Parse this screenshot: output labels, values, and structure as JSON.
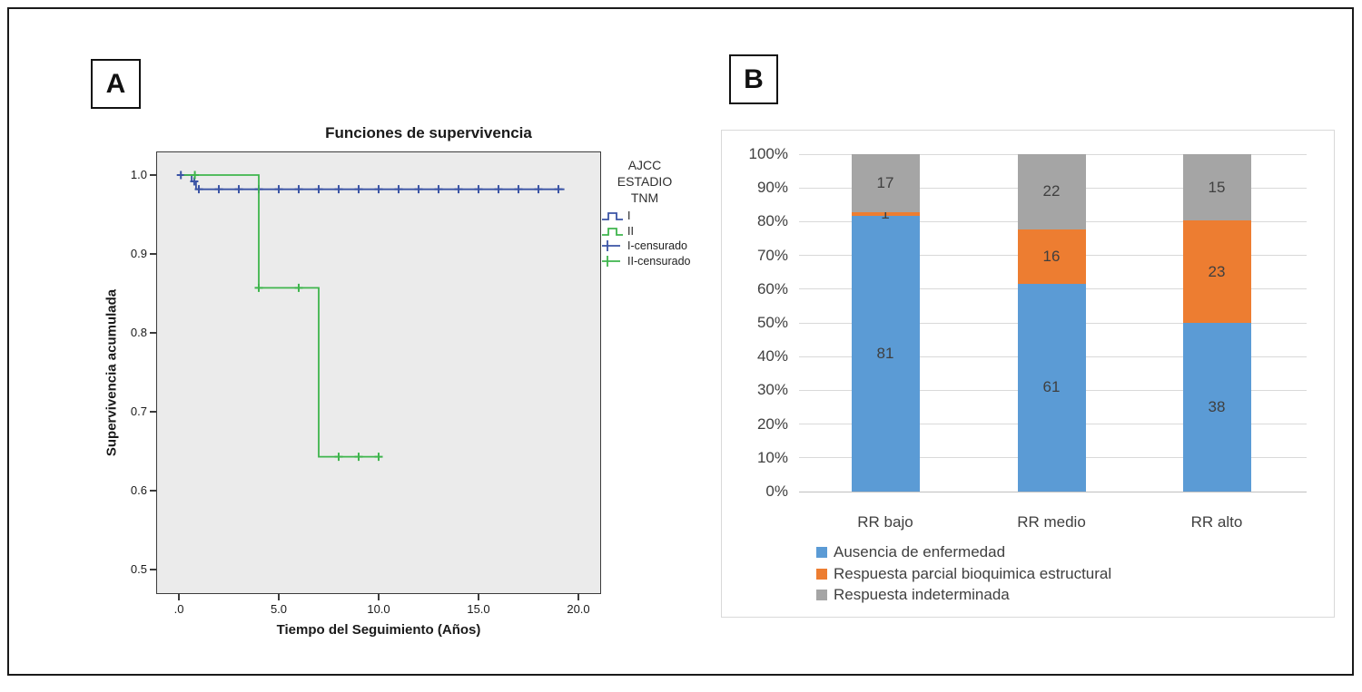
{
  "figure": {
    "panel_a_label": "A",
    "panel_b_label": "B"
  },
  "chart_data": [
    {
      "panel": "A",
      "type": "line",
      "subtype": "kaplan-meier-step",
      "title": "Funciones de supervivencia",
      "xlabel": "Tiempo del Seguimiento (Años)",
      "ylabel": "Supervivencia acumulada",
      "xlim": [
        0,
        21
      ],
      "ylim": [
        0.45,
        1.02
      ],
      "xticks": [
        ".0",
        "5.0",
        "10.0",
        "15.0",
        "20.0"
      ],
      "yticks": [
        "1.0",
        "0.9",
        "0.8",
        "0.7",
        "0.6",
        "0.5"
      ],
      "grid": false,
      "plot_bg": "#ebebeb",
      "legend_position": "right",
      "legend_title_lines": [
        "AJCC",
        "ESTADIO",
        "TNM"
      ],
      "series": [
        {
          "name": "I",
          "color": "#3b54a5",
          "step_points": [
            [
              0,
              1.0
            ],
            [
              0.64,
              1.0
            ],
            [
              0.64,
              0.992
            ],
            [
              0.86,
              0.992
            ],
            [
              0.86,
              0.982
            ],
            [
              19.3,
              0.982
            ]
          ],
          "censored": [
            [
              0.1,
              1.0
            ],
            [
              0.77,
              0.992
            ],
            [
              1,
              0.982
            ],
            [
              2,
              0.982
            ],
            [
              3,
              0.982
            ],
            [
              4,
              0.982
            ],
            [
              5,
              0.982
            ],
            [
              6,
              0.982
            ],
            [
              7,
              0.982
            ],
            [
              8,
              0.982
            ],
            [
              9,
              0.982
            ],
            [
              10,
              0.982
            ],
            [
              11,
              0.982
            ],
            [
              12,
              0.982
            ],
            [
              13,
              0.982
            ],
            [
              14,
              0.982
            ],
            [
              15,
              0.982
            ],
            [
              16,
              0.982
            ],
            [
              17,
              0.982
            ],
            [
              18,
              0.982
            ],
            [
              19,
              0.982
            ]
          ]
        },
        {
          "name": "II",
          "color": "#3fb54d",
          "step_points": [
            [
              0.25,
              1.0
            ],
            [
              4,
              1.0
            ],
            [
              4,
              0.857
            ],
            [
              7,
              0.857
            ],
            [
              7,
              0.643
            ],
            [
              10,
              0.643
            ]
          ],
          "censored": [
            [
              0.8,
              1.0
            ],
            [
              4,
              0.857
            ],
            [
              6,
              0.857
            ],
            [
              8,
              0.643
            ],
            [
              9,
              0.643
            ],
            [
              10,
              0.643
            ]
          ]
        }
      ],
      "legend_entries": [
        {
          "label": "I",
          "glyph": "step",
          "color": "#3b54a5"
        },
        {
          "label": "II",
          "glyph": "step",
          "color": "#3fb54d"
        },
        {
          "label": "I-censurado",
          "glyph": "plus",
          "color": "#3b54a5"
        },
        {
          "label": "II-censurado",
          "glyph": "plus",
          "color": "#3fb54d"
        }
      ]
    },
    {
      "panel": "B",
      "type": "bar",
      "subtype": "stacked-100pct",
      "categories": [
        "RR bajo",
        "RR medio",
        "RR alto"
      ],
      "series": [
        {
          "name": "Ausencia de enfermedad",
          "color": "#5b9bd5",
          "values": [
            81,
            61,
            38
          ]
        },
        {
          "name": "Respuesta parcial bioquimica estructural",
          "color": "#ed7d31",
          "values": [
            1,
            16,
            23
          ]
        },
        {
          "name": "Respuesta indeterminada",
          "color": "#a5a5a5",
          "values": [
            17,
            22,
            15
          ]
        }
      ],
      "yticks": [
        "0%",
        "10%",
        "20%",
        "30%",
        "40%",
        "50%",
        "60%",
        "70%",
        "80%",
        "90%",
        "100%"
      ],
      "grid": true,
      "grid_color": "#d9d9d9",
      "axis_color": "#bfbfbf",
      "text_color": "#404040",
      "legend_position": "bottom-left"
    }
  ]
}
